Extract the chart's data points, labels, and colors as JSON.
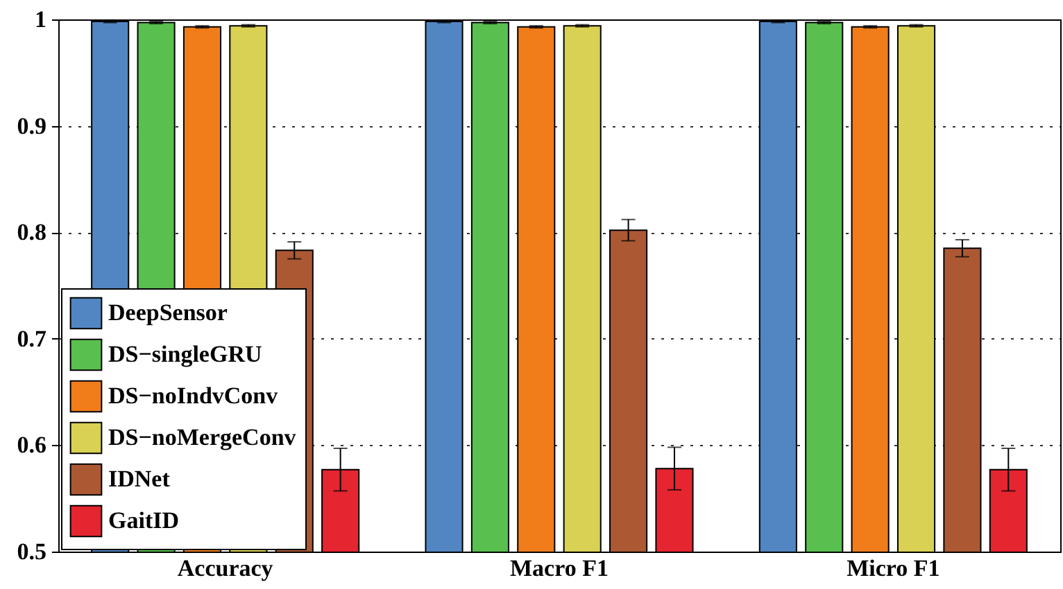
{
  "chart_data": {
    "type": "bar",
    "categories": [
      "Accuracy",
      "Macro F1",
      "Micro F1"
    ],
    "series": [
      {
        "name": "DeepSensor",
        "color": "#5286c3",
        "values": [
          0.998,
          0.998,
          0.998
        ],
        "errors": [
          0.001,
          0.001,
          0.001
        ]
      },
      {
        "name": "DS−singleGRU",
        "color": "#59bf4f",
        "values": [
          0.997,
          0.997,
          0.997
        ],
        "errors": [
          0.001,
          0.001,
          0.001
        ]
      },
      {
        "name": "DS−noIndvConv",
        "color": "#f07d1a",
        "values": [
          0.993,
          0.993,
          0.993
        ],
        "errors": [
          0.001,
          0.001,
          0.001
        ]
      },
      {
        "name": "DS−noMergeConv",
        "color": "#d9d153",
        "values": [
          0.994,
          0.994,
          0.994
        ],
        "errors": [
          0.001,
          0.001,
          0.001
        ]
      },
      {
        "name": "IDNet",
        "color": "#ac5933",
        "values": [
          0.783,
          0.802,
          0.785
        ],
        "errors": [
          0.008,
          0.01,
          0.008
        ]
      },
      {
        "name": "GaitID",
        "color": "#e52530",
        "values": [
          0.577,
          0.578,
          0.577
        ],
        "errors": [
          0.02,
          0.02,
          0.02
        ]
      }
    ],
    "ylim": [
      0.5,
      1
    ],
    "yticks": [
      0.5,
      0.6,
      0.7,
      0.8,
      0.9,
      1
    ],
    "grid": "y",
    "legend": "bottom left"
  }
}
